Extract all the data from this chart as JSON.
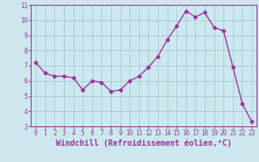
{
  "x": [
    0,
    1,
    2,
    3,
    4,
    5,
    6,
    7,
    8,
    9,
    10,
    11,
    12,
    13,
    14,
    15,
    16,
    17,
    18,
    19,
    20,
    21,
    22,
    23
  ],
  "y": [
    7.2,
    6.5,
    6.3,
    6.3,
    6.2,
    5.4,
    6.0,
    5.9,
    5.3,
    5.4,
    6.0,
    6.3,
    6.9,
    7.6,
    8.7,
    9.6,
    10.6,
    10.2,
    10.5,
    9.5,
    9.3,
    6.9,
    4.5,
    3.3
  ],
  "line_color": "#993399",
  "marker": "D",
  "marker_size": 2.2,
  "bg_color": "#cce8ee",
  "grid_color": "#aacdd5",
  "axis_color": "#993399",
  "xlabel": "Windchill (Refroidissement éolien,°C)",
  "xlim": [
    -0.5,
    23.5
  ],
  "ylim": [
    3,
    11
  ],
  "yticks": [
    3,
    4,
    5,
    6,
    7,
    8,
    9,
    10,
    11
  ],
  "xticks": [
    0,
    1,
    2,
    3,
    4,
    5,
    6,
    7,
    8,
    9,
    10,
    11,
    12,
    13,
    14,
    15,
    16,
    17,
    18,
    19,
    20,
    21,
    22,
    23
  ],
  "tick_label_fontsize": 5.5,
  "xlabel_fontsize": 7,
  "line_width": 1.0
}
